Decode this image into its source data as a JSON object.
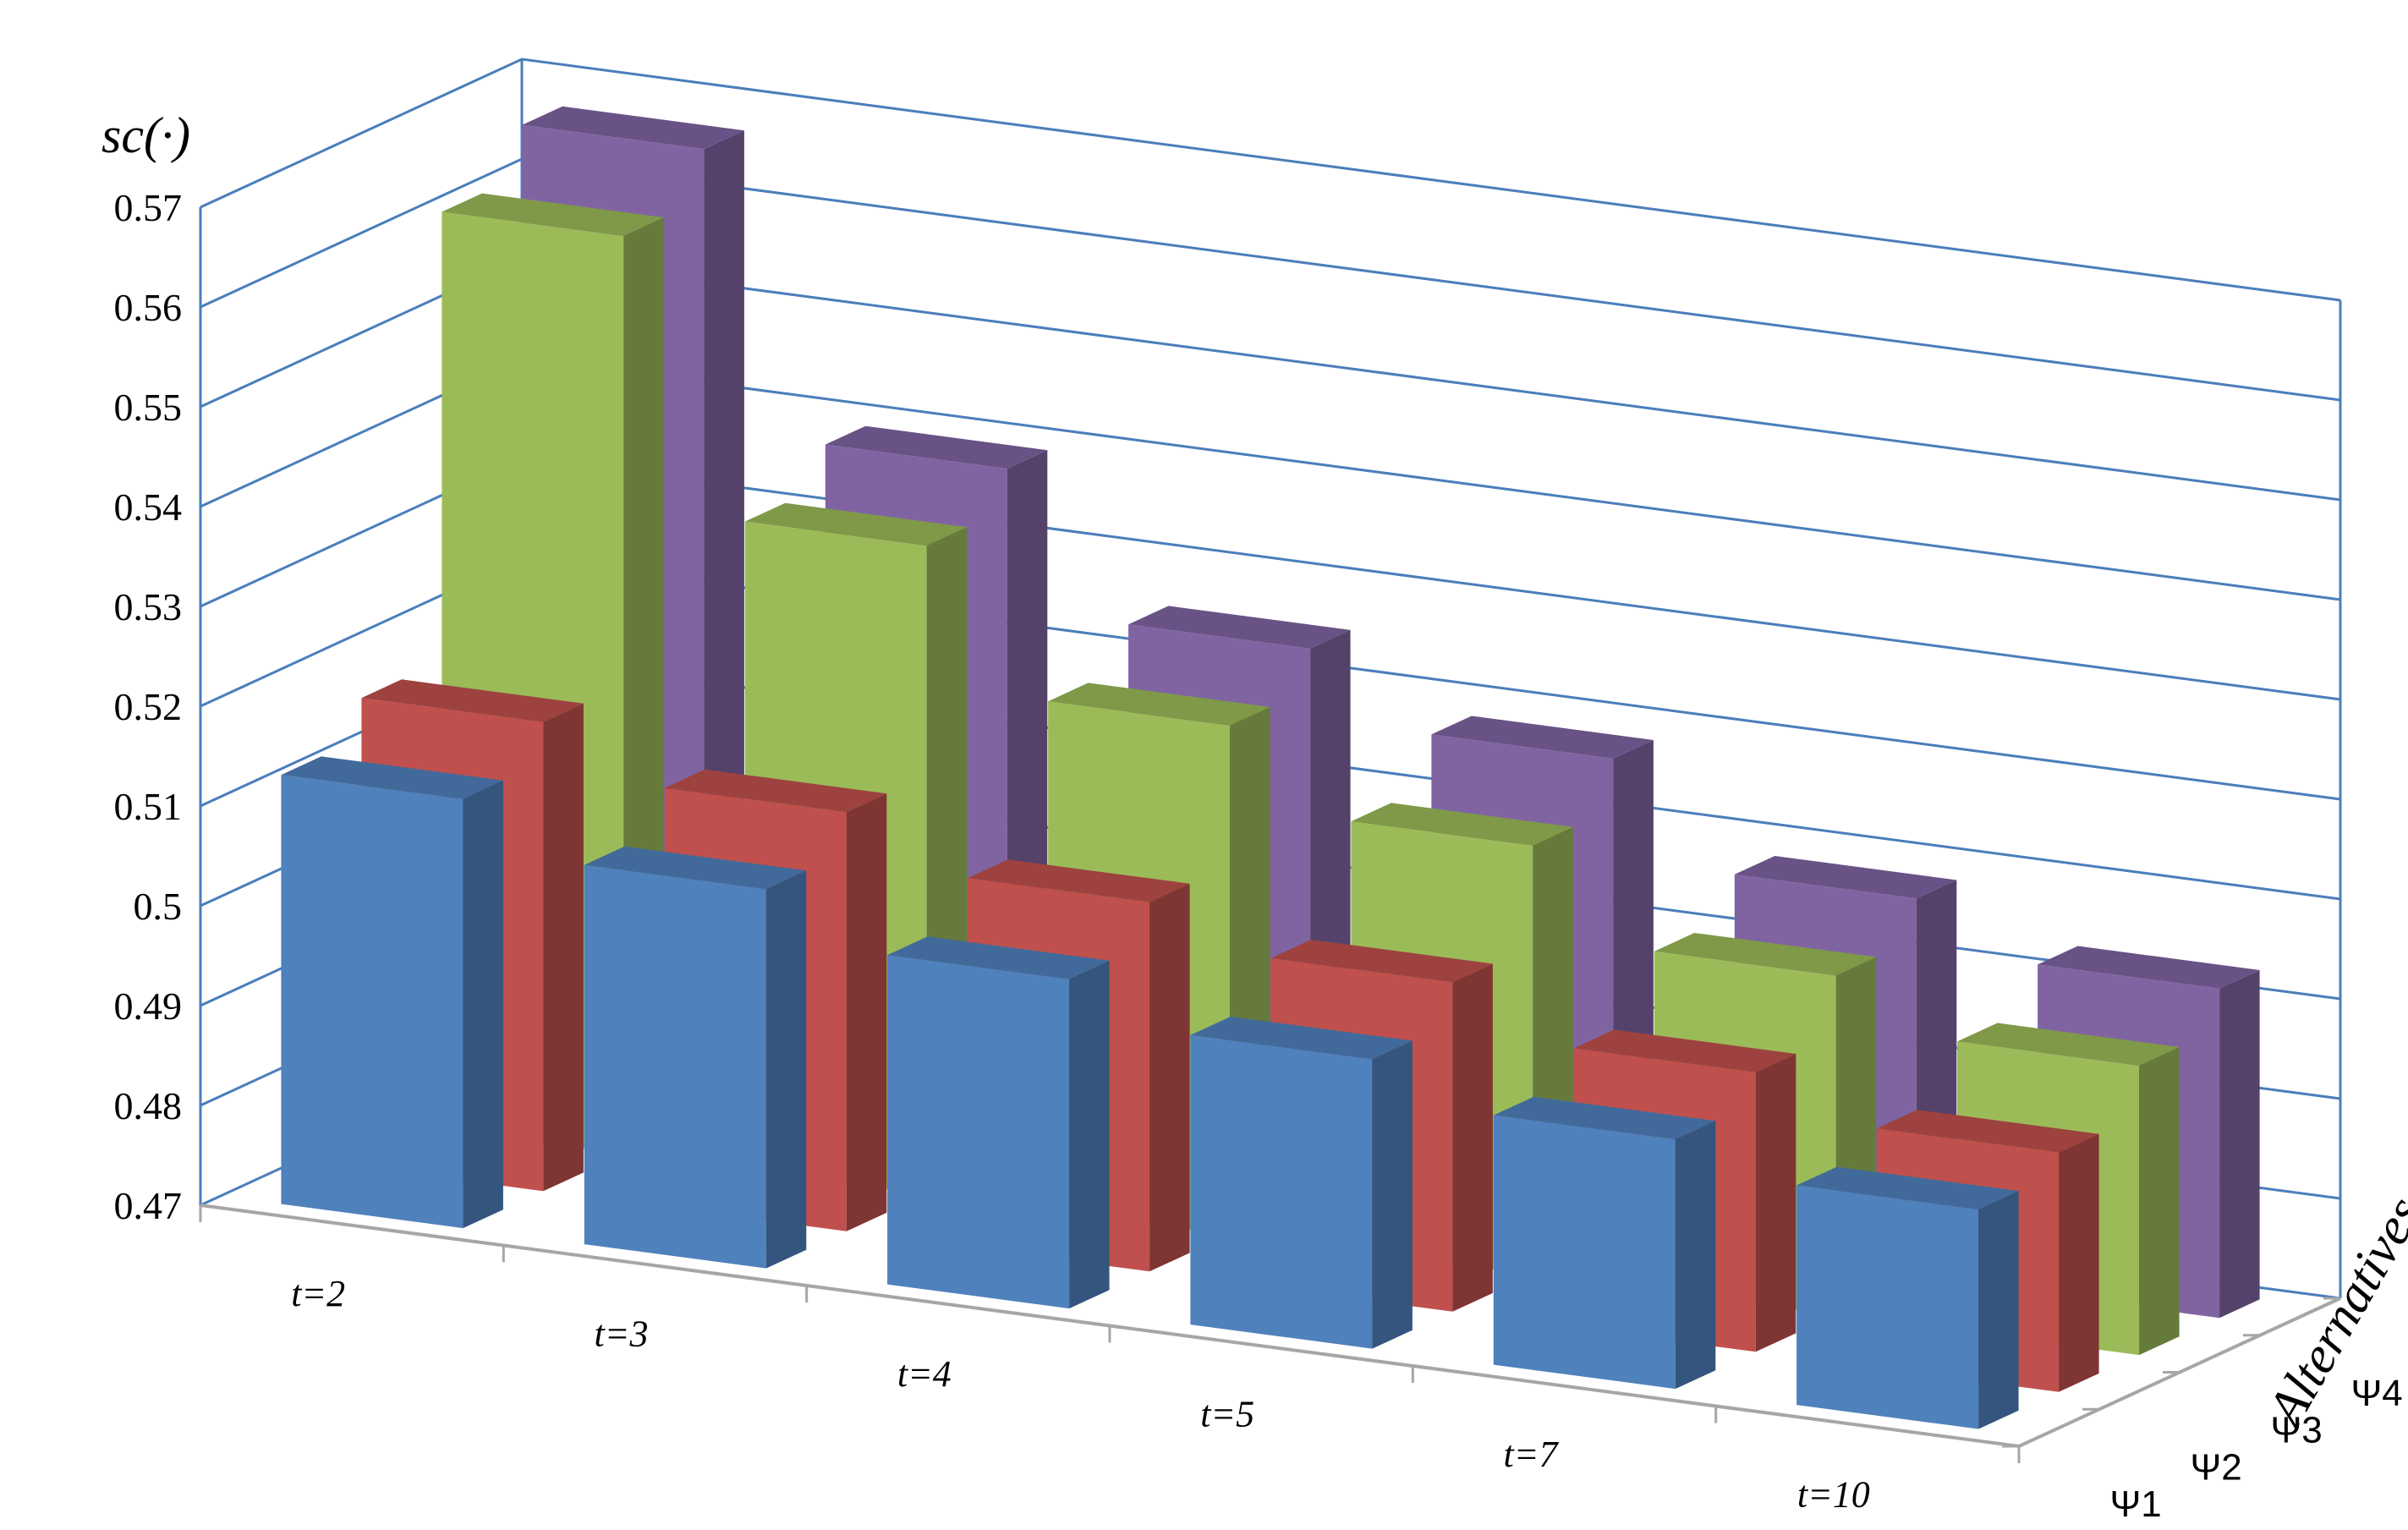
{
  "chart_data": {
    "type": "bar",
    "subtype": "3d-column",
    "ylabel": "sc(·)",
    "zlabel": "Alternatives",
    "categories": [
      "t=2",
      "t=3",
      "t=4",
      "t=5",
      "t=7",
      "t=10"
    ],
    "ylim": [
      0.47,
      0.57
    ],
    "yticks": [
      "0.47",
      "0.48",
      "0.49",
      "0.5",
      "0.51",
      "0.52",
      "0.53",
      "0.54",
      "0.55",
      "0.56",
      "0.57"
    ],
    "grid": true,
    "series": [
      {
        "name": "Ψ1",
        "color": "#4f81bd",
        "values": [
          0.513,
          0.508,
          0.503,
          0.499,
          0.495,
          0.492
        ]
      },
      {
        "name": "Ψ2",
        "color": "#c0504d",
        "values": [
          0.517,
          0.512,
          0.507,
          0.503,
          0.498,
          0.494
        ]
      },
      {
        "name": "Ψ3",
        "color": "#9bbb59",
        "values": [
          0.562,
          0.535,
          0.521,
          0.513,
          0.504,
          0.499
        ]
      },
      {
        "name": "Ψ4",
        "color": "#8064a2",
        "values": [
          0.567,
          0.539,
          0.525,
          0.518,
          0.508,
          0.503
        ]
      }
    ]
  }
}
